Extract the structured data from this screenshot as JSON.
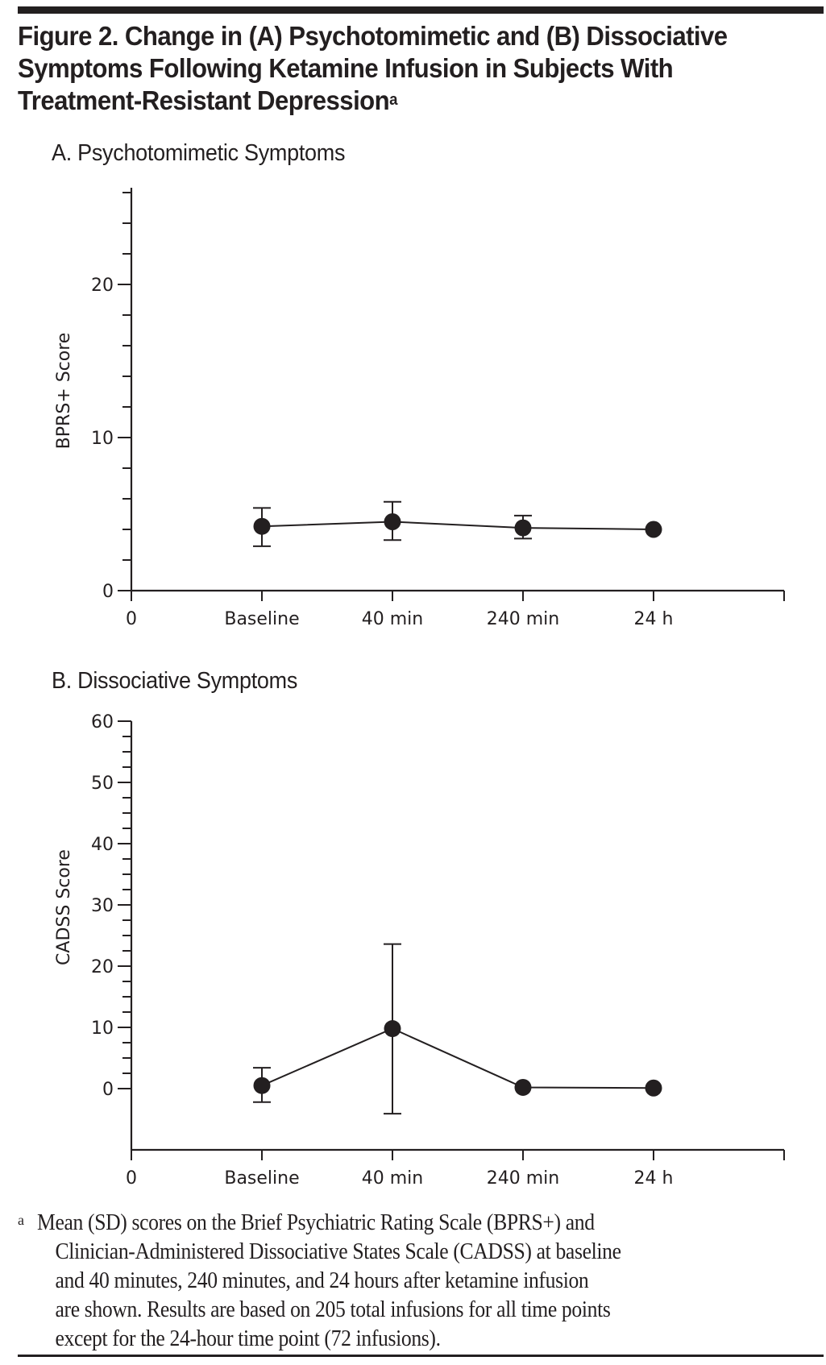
{
  "figure": {
    "title_line1": "Figure 2. Change in (A) Psychotomimetic and (B) Dissociative",
    "title_line2": "Symptoms Following Ketamine Infusion in Subjects With",
    "title_line3": "Treatment-Resistant Depression",
    "title_footnote_mark": "a"
  },
  "footnote": {
    "mark": "a",
    "lines": [
      "Mean (SD) scores on the Brief Psychiatric Rating Scale (BPRS+) and",
      "Clinician-Administered Dissociative States Scale (CADSS) at baseline",
      "and 40 minutes, 240 minutes, and 24 hours after ketamine infusion",
      "are shown. Results are based on 205 total infusions for all time points",
      "except for the 24-hour time point (72 infusions)."
    ]
  },
  "chart_data": [
    {
      "type": "line",
      "title": "A. Psychotomimetic Symptoms",
      "xlabel": "",
      "ylabel": "BPRS+ Score",
      "x_origin_label": "0",
      "categories": [
        "Baseline",
        "40 min",
        "240 min",
        "24 h"
      ],
      "series": [
        {
          "name": "BPRS+ mean",
          "values": [
            4.2,
            4.5,
            4.1,
            4.0
          ],
          "sd_upper": [
            5.4,
            5.8,
            4.9,
            null
          ],
          "sd_lower": [
            2.9,
            3.3,
            3.4,
            null
          ]
        }
      ],
      "ylim": [
        0,
        26
      ],
      "major_ticks": [
        0,
        10,
        20
      ],
      "minor_tick_step": 2,
      "error_bars": "SD",
      "grid": false,
      "legend": "none"
    },
    {
      "type": "line",
      "title": "B. Dissociative Symptoms",
      "xlabel": "",
      "ylabel": "CADSS Score",
      "x_origin_label": "0",
      "categories": [
        "Baseline",
        "40 min",
        "240 min",
        "24 h"
      ],
      "series": [
        {
          "name": "CADSS mean",
          "values": [
            0.5,
            9.8,
            0.2,
            0.1
          ],
          "sd_upper": [
            3.4,
            23.6,
            null,
            null
          ],
          "sd_lower": [
            -2.2,
            -4.1,
            null,
            null
          ]
        }
      ],
      "ylim": [
        -10,
        60
      ],
      "major_ticks": [
        0,
        10,
        20,
        30,
        40,
        50,
        60
      ],
      "minor_tick_step": 2.5,
      "minor_tick_range": [
        0,
        60
      ],
      "error_bars": "SD",
      "grid": false,
      "legend": "none"
    }
  ]
}
